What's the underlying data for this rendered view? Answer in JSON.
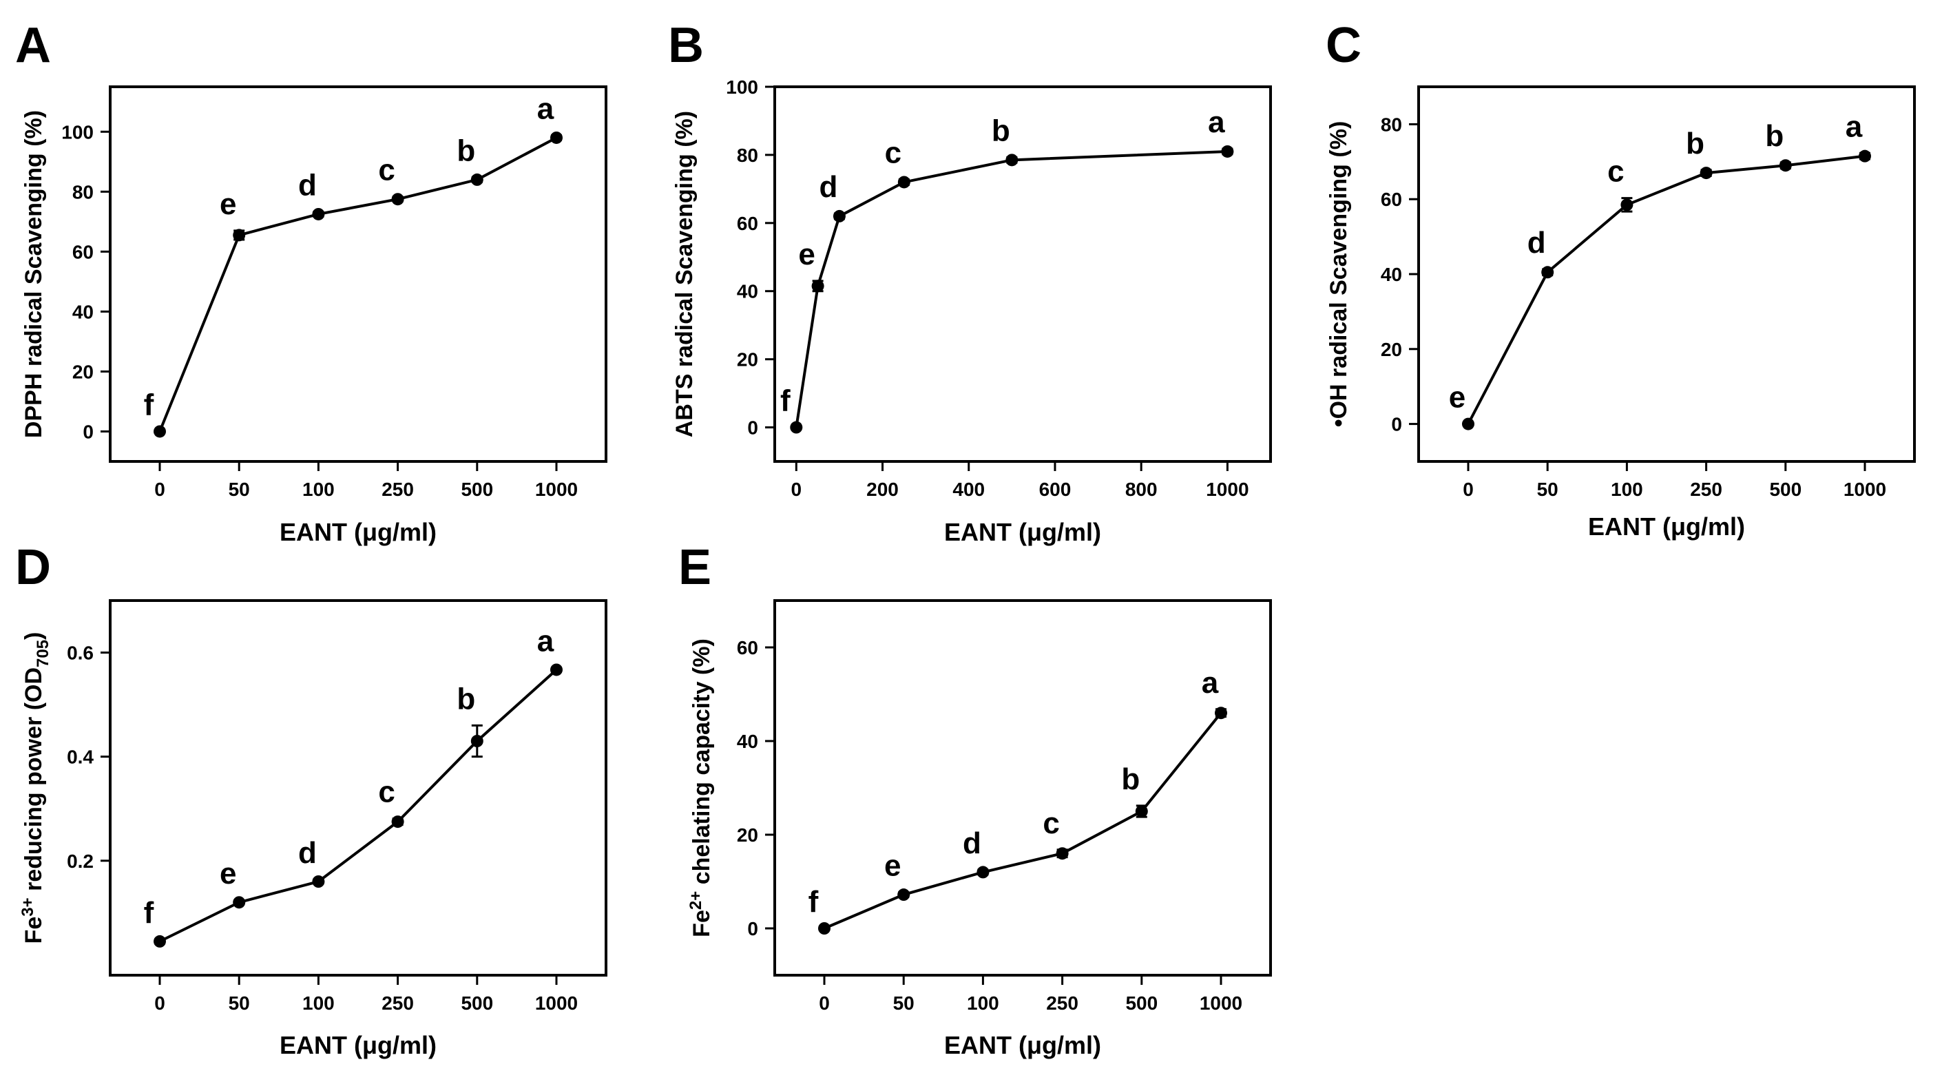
{
  "chart_data": [
    {
      "panel": "A",
      "type": "line",
      "xscale": "categorical",
      "categories": [
        "0",
        "50",
        "100",
        "250",
        "500",
        "1000"
      ],
      "values": [
        0,
        65.5,
        72.5,
        77.5,
        84,
        98
      ],
      "errors": [
        0,
        1.5,
        0.8,
        0.8,
        0.8,
        0.8
      ],
      "letters": [
        "f",
        "e",
        "d",
        "c",
        "b",
        "a"
      ],
      "xlabel": "EANT (μg/ml)",
      "ylabel": "DPPH radical Scavenging (%)",
      "ylim": [
        -10,
        115
      ],
      "yticks": [
        0,
        20,
        40,
        60,
        80,
        100
      ],
      "yticklabels": [
        "0",
        "20",
        "40",
        "60",
        "80",
        "100"
      ]
    },
    {
      "panel": "B",
      "type": "line",
      "xscale": "linear",
      "x": [
        0,
        50,
        100,
        250,
        500,
        1000
      ],
      "values": [
        0,
        41.5,
        62,
        72,
        78.5,
        81
      ],
      "errors": [
        0,
        1.5,
        0.8,
        0.8,
        0.8,
        0.8
      ],
      "letters": [
        "f",
        "e",
        "d",
        "c",
        "b",
        "a"
      ],
      "xlabel": "EANT (μg/ml)",
      "ylabel": "ABTS radical Scavenging (%)",
      "xlim": [
        -50,
        1100
      ],
      "xticks": [
        0,
        200,
        400,
        600,
        800,
        1000
      ],
      "xticklabels": [
        "0",
        "200",
        "400",
        "600",
        "800",
        "1000"
      ],
      "ylim": [
        -10,
        100
      ],
      "yticks": [
        0,
        20,
        40,
        60,
        80,
        100
      ],
      "yticklabels": [
        "0",
        "20",
        "40",
        "60",
        "80",
        "100"
      ]
    },
    {
      "panel": "C",
      "type": "line",
      "xscale": "categorical",
      "categories": [
        "0",
        "50",
        "100",
        "250",
        "500",
        "1000"
      ],
      "values": [
        0,
        40.5,
        58.5,
        67,
        69,
        71.5
      ],
      "errors": [
        0,
        0.8,
        1.8,
        0.8,
        0.8,
        0.8
      ],
      "letters": [
        "e",
        "d",
        "c",
        "b",
        "b",
        "a"
      ],
      "xlabel": "EANT (μg/ml)",
      "ylabel": "•OH radical Scavenging (%)",
      "ylim": [
        -10,
        90
      ],
      "yticks": [
        0,
        20,
        40,
        60,
        80
      ],
      "yticklabels": [
        "0",
        "20",
        "40",
        "60",
        "80"
      ]
    },
    {
      "panel": "D",
      "type": "line",
      "xscale": "categorical",
      "categories": [
        "0",
        "50",
        "100",
        "250",
        "500",
        "1000"
      ],
      "values": [
        0.045,
        0.12,
        0.16,
        0.275,
        0.43,
        0.567
      ],
      "errors": [
        0.004,
        0.004,
        0.004,
        0.006,
        0.03,
        0.004
      ],
      "letters": [
        "f",
        "e",
        "d",
        "c",
        "b",
        "a"
      ],
      "xlabel": "EANT (μg/ml)",
      "ylabel": "Fe3+ reducing power (OD705)",
      "ylabel_parts": {
        "base": "Fe",
        "sup": "3+",
        "mid": " reducing power (OD",
        "sub": "705",
        "end": ")"
      },
      "ylim": [
        -0.02,
        0.7
      ],
      "yticks": [
        0.2,
        0.4,
        0.6
      ],
      "yticklabels": [
        "0.2",
        "0.4",
        "0.6"
      ]
    },
    {
      "panel": "E",
      "type": "line",
      "xscale": "categorical",
      "categories": [
        "0",
        "50",
        "100",
        "250",
        "500",
        "1000"
      ],
      "values": [
        0,
        7.2,
        12,
        16,
        25,
        46
      ],
      "errors": [
        0,
        0.5,
        0.5,
        0.8,
        1.2,
        0.8
      ],
      "letters": [
        "f",
        "e",
        "d",
        "c",
        "b",
        "a"
      ],
      "xlabel": "EANT (μg/ml)",
      "ylabel": "Fe2+ chelating capacity (%)",
      "ylabel_parts": {
        "base": "Fe",
        "sup": "2+",
        "end": " chelating capacity (%)"
      },
      "ylim": [
        -10,
        70
      ],
      "yticks": [
        0,
        20,
        40,
        60
      ],
      "yticklabels": [
        "0",
        "20",
        "40",
        "60"
      ]
    }
  ]
}
